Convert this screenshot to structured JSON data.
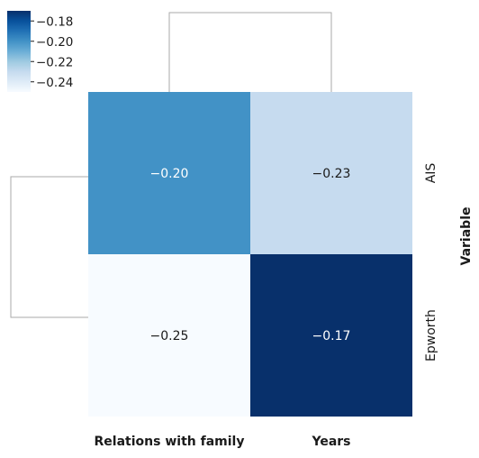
{
  "chart_data": {
    "type": "heatmap",
    "title": "",
    "rows": [
      "AIS",
      "Epworth"
    ],
    "columns": [
      "Relations with family",
      "Years"
    ],
    "values": [
      [
        -0.2,
        -0.23
      ],
      [
        -0.25,
        -0.17
      ]
    ],
    "value_labels": [
      [
        "−0.20",
        "−0.23"
      ],
      [
        "−0.25",
        "−0.17"
      ]
    ],
    "row_axis_title": "Variable",
    "colormap": "Blues",
    "colorbar": {
      "min": -0.25,
      "max": -0.17,
      "ticks": [
        -0.18,
        -0.2,
        -0.22,
        -0.24
      ],
      "tick_labels": [
        "−0.18",
        "−0.20",
        "−0.22",
        "−0.24"
      ],
      "position": "top-left"
    },
    "dendrograms": [
      "rows",
      "columns"
    ],
    "colors": {
      "low": "#f7fbff",
      "high": "#08306b",
      "dendrogram": "#aaaaaa"
    }
  }
}
